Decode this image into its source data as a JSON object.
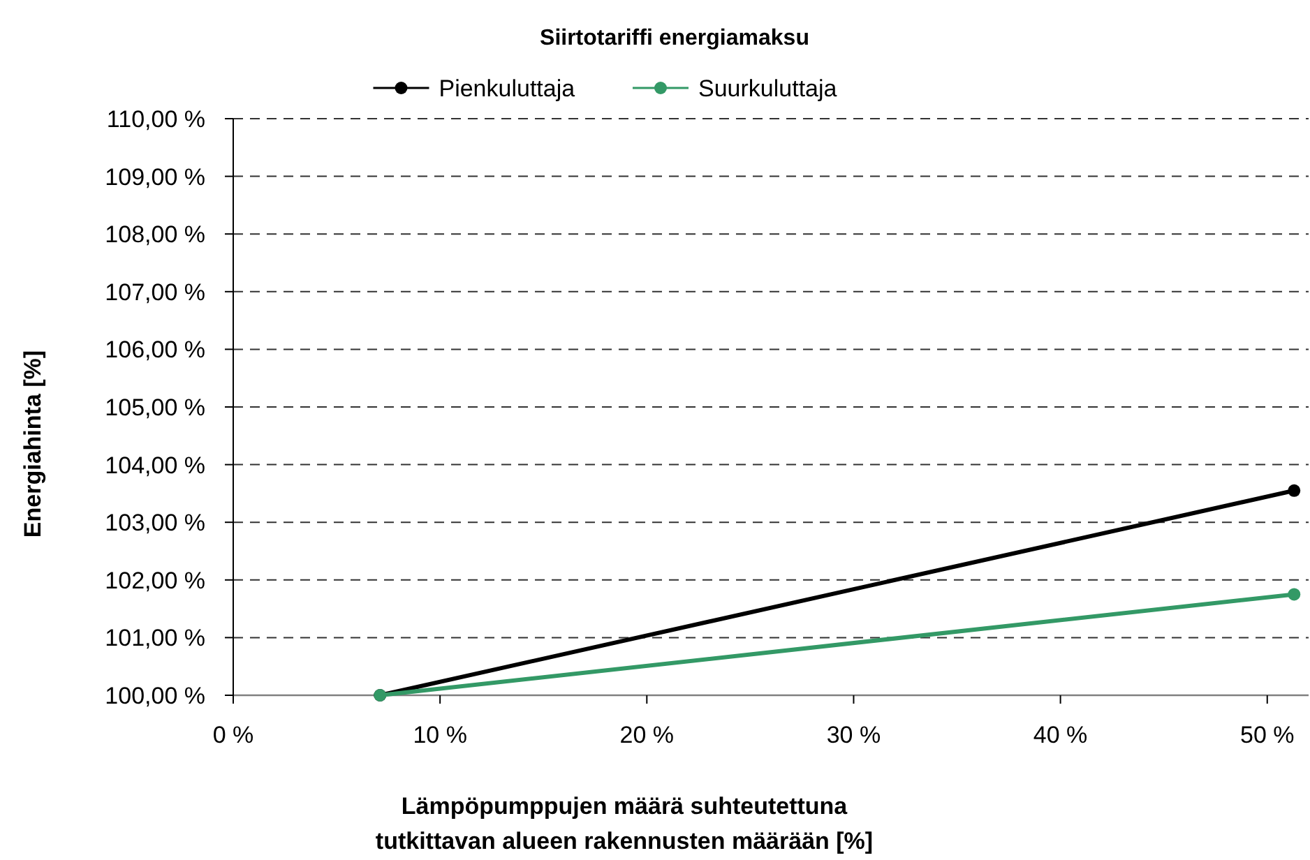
{
  "chart_data": {
    "type": "line",
    "title": "Siirtotariffi energiamaksu",
    "xlabel": "Lämpöpumppujen määrä suhteutettuna\ntutkittavan alueen rakennusten määrään [%]",
    "ylabel": "Energiahinta [%]",
    "x": [
      7.1,
      51.3
    ],
    "series": [
      {
        "name": "Pienkuluttaja",
        "color": "#000000",
        "values": [
          100,
          103.55
        ]
      },
      {
        "name": "Suurkuluttaja",
        "color": "#339966",
        "values": [
          100,
          101.75
        ]
      }
    ],
    "xlim": [
      0,
      52
    ],
    "xticks": [
      {
        "value": 0,
        "label": "0 %"
      },
      {
        "value": 10,
        "label": "10 %"
      },
      {
        "value": 20,
        "label": "20 %"
      },
      {
        "value": 30,
        "label": "30 %"
      },
      {
        "value": 40,
        "label": "40 %"
      },
      {
        "value": 50,
        "label": "50 %"
      }
    ],
    "ylim": [
      100,
      110
    ],
    "yticks": [
      {
        "value": 100,
        "label": "100,00 %"
      },
      {
        "value": 101,
        "label": "101,00 %"
      },
      {
        "value": 102,
        "label": "102,00 %"
      },
      {
        "value": 103,
        "label": "103,00 %"
      },
      {
        "value": 104,
        "label": "104,00 %"
      },
      {
        "value": 105,
        "label": "105,00 %"
      },
      {
        "value": 106,
        "label": "106,00 %"
      },
      {
        "value": 107,
        "label": "107,00 %"
      },
      {
        "value": 108,
        "label": "108,00 %"
      },
      {
        "value": 109,
        "label": "109,00 %"
      },
      {
        "value": 110,
        "label": "110,00 %"
      }
    ],
    "grid": "y",
    "legend": "top",
    "marker": "circle",
    "line_style": "solid"
  }
}
